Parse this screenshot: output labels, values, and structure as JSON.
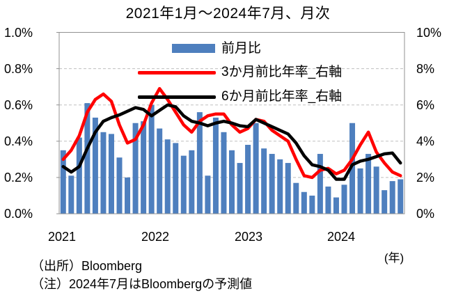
{
  "title": "2021年1月～2024年7月、月次",
  "legend": {
    "items": [
      {
        "label": "前月比",
        "type": "bar",
        "color": "#4E7FBE"
      },
      {
        "label": "3か月前比年率_右軸",
        "type": "line",
        "color": "#FF0000"
      },
      {
        "label": "6か月前比年率_右軸",
        "type": "line",
        "color": "#000000"
      }
    ]
  },
  "axes": {
    "left_ticks": [
      "1.0%",
      "0.8%",
      "0.6%",
      "0.4%",
      "0.2%",
      "0.0%"
    ],
    "right_ticks": [
      "10%",
      "8%",
      "6%",
      "4%",
      "2%",
      "0%"
    ],
    "x_year_labels": [
      "2021",
      "2022",
      "2023",
      "2024"
    ],
    "x_unit": "(年)"
  },
  "footer": {
    "source": "（出所）Bloomberg",
    "note": "（注）2024年7月はBloombergの予測値"
  },
  "colors": {
    "bar": "#4E7FBE",
    "line_3m": "#FF0000",
    "line_6m": "#000000",
    "gridline": "#bfbfbf",
    "axis": "#909090"
  },
  "chart_data": {
    "type": "bar",
    "title": "2021年1月～2024年7月、月次",
    "x": [
      "2021-01",
      "2021-02",
      "2021-03",
      "2021-04",
      "2021-05",
      "2021-06",
      "2021-07",
      "2021-08",
      "2021-09",
      "2021-10",
      "2021-11",
      "2021-12",
      "2022-01",
      "2022-02",
      "2022-03",
      "2022-04",
      "2022-05",
      "2022-06",
      "2022-07",
      "2022-08",
      "2022-09",
      "2022-10",
      "2022-11",
      "2022-12",
      "2023-01",
      "2023-02",
      "2023-03",
      "2023-04",
      "2023-05",
      "2023-06",
      "2023-07",
      "2023-08",
      "2023-09",
      "2023-10",
      "2023-11",
      "2023-12",
      "2024-01",
      "2024-02",
      "2024-03",
      "2024-04",
      "2024-05",
      "2024-06",
      "2024-07"
    ],
    "series": [
      {
        "name": "前月比",
        "type": "bar",
        "axis": "left",
        "unit": "%",
        "values": [
          0.35,
          0.21,
          0.42,
          0.61,
          0.53,
          0.45,
          0.44,
          0.31,
          0.2,
          0.5,
          0.51,
          0.6,
          0.47,
          0.41,
          0.39,
          0.32,
          0.35,
          0.56,
          0.21,
          0.53,
          0.45,
          0.35,
          0.28,
          0.38,
          0.5,
          0.36,
          0.33,
          0.3,
          0.28,
          0.17,
          0.12,
          0.1,
          0.33,
          0.15,
          0.09,
          0.16,
          0.5,
          0.25,
          0.33,
          0.26,
          0.13,
          0.18,
          0.19
        ]
      },
      {
        "name": "3か月前比年率_右軸",
        "type": "line",
        "axis": "right",
        "unit": "%",
        "values": [
          3.0,
          3.5,
          4.3,
          5.6,
          6.3,
          6.6,
          6.2,
          4.9,
          3.9,
          4.1,
          4.9,
          6.1,
          6.9,
          6.3,
          5.6,
          4.9,
          4.5,
          5.1,
          5.4,
          5.5,
          5.5,
          4.9,
          4.5,
          4.7,
          5.2,
          5.1,
          4.6,
          4.3,
          4.0,
          3.0,
          2.1,
          2.0,
          2.4,
          2.5,
          2.2,
          2.4,
          3.0,
          3.8,
          4.5,
          3.4,
          2.8,
          2.3,
          2.1
        ]
      },
      {
        "name": "6か月前比年率_右軸",
        "type": "line",
        "axis": "right",
        "unit": "%",
        "values": [
          2.6,
          2.3,
          2.6,
          3.6,
          4.5,
          5.1,
          5.3,
          5.45,
          5.65,
          5.85,
          5.75,
          5.4,
          5.7,
          6.0,
          5.9,
          5.4,
          5.1,
          5.0,
          4.85,
          5.0,
          5.1,
          5.0,
          4.85,
          4.8,
          5.2,
          5.0,
          4.8,
          4.6,
          4.4,
          3.9,
          3.2,
          2.7,
          2.6,
          2.4,
          1.9,
          1.9,
          2.7,
          2.9,
          3.0,
          3.15,
          3.3,
          3.35,
          2.8
        ]
      }
    ],
    "left_ylim": [
      0,
      1.0
    ],
    "right_ylim": [
      0,
      10
    ],
    "grid": "horizontal-dashed",
    "legend_position": "top-center-inside"
  }
}
